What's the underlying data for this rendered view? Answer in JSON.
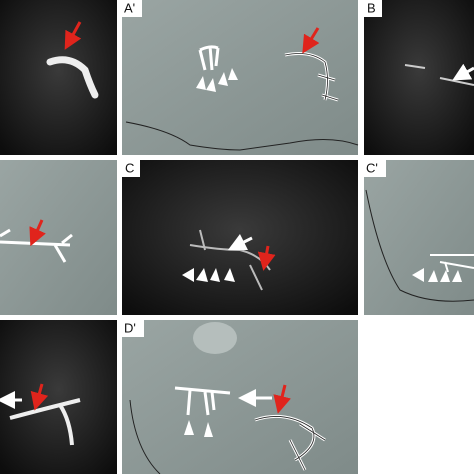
{
  "labels": [
    "A'",
    "B",
    "C",
    "C'",
    "D'"
  ]
}
